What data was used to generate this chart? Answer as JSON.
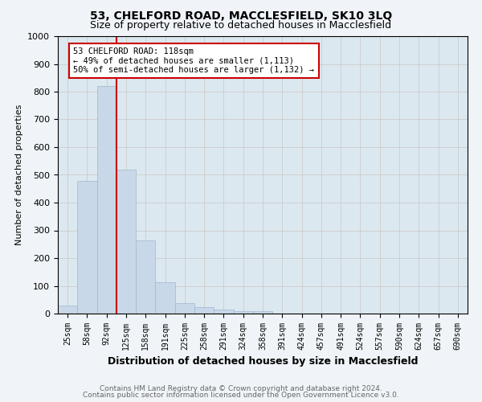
{
  "title1": "53, CHELFORD ROAD, MACCLESFIELD, SK10 3LQ",
  "title2": "Size of property relative to detached houses in Macclesfield",
  "xlabel": "Distribution of detached houses by size in Macclesfield",
  "ylabel": "Number of detached properties",
  "categories": [
    "25sqm",
    "58sqm",
    "92sqm",
    "125sqm",
    "158sqm",
    "191sqm",
    "225sqm",
    "258sqm",
    "291sqm",
    "324sqm",
    "358sqm",
    "391sqm",
    "424sqm",
    "457sqm",
    "491sqm",
    "524sqm",
    "557sqm",
    "590sqm",
    "624sqm",
    "657sqm",
    "690sqm"
  ],
  "values": [
    30,
    478,
    820,
    518,
    265,
    112,
    38,
    22,
    15,
    8,
    10,
    0,
    0,
    0,
    0,
    0,
    0,
    0,
    0,
    0,
    0
  ],
  "bar_color": "#c8d8e8",
  "bar_edge_color": "#a0b8cc",
  "vline_color": "#cc0000",
  "annotation_text": "53 CHELFORD ROAD: 118sqm\n← 49% of detached houses are smaller (1,113)\n50% of semi-detached houses are larger (1,132) →",
  "annotation_box_color": "#ffffff",
  "annotation_box_edge": "#cc0000",
  "ylim": [
    0,
    1000
  ],
  "yticks": [
    0,
    100,
    200,
    300,
    400,
    500,
    600,
    700,
    800,
    900,
    1000
  ],
  "grid_color": "#cccccc",
  "bg_color": "#dce8f0",
  "fig_bg_color": "#f0f4f8",
  "footer1": "Contains HM Land Registry data © Crown copyright and database right 2024.",
  "footer2": "Contains public sector information licensed under the Open Government Licence v3.0.",
  "title1_fontsize": 10,
  "title2_fontsize": 9,
  "xlabel_fontsize": 9,
  "ylabel_fontsize": 8,
  "tick_fontsize": 7,
  "annotation_fontsize": 7.5,
  "footer_fontsize": 6.5
}
